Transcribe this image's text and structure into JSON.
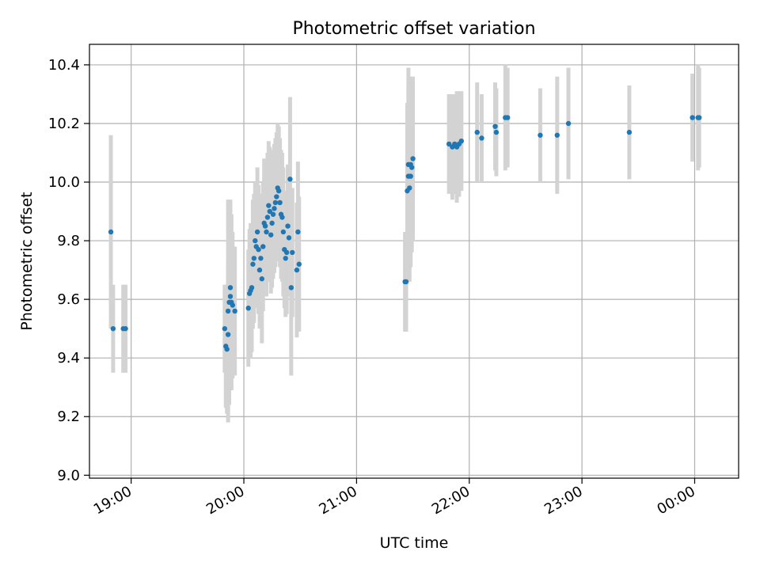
{
  "chart_data": {
    "type": "scatter",
    "title": "Photometric offset variation",
    "xlabel": "UTC time",
    "ylabel": "Photometric offset",
    "x_axis": {
      "unit": "hours since 18:00 UTC",
      "range": [
        0.63,
        6.39
      ],
      "ticks": [
        {
          "value": 1,
          "label": "19:00"
        },
        {
          "value": 2,
          "label": "20:00"
        },
        {
          "value": 3,
          "label": "21:00"
        },
        {
          "value": 4,
          "label": "22:00"
        },
        {
          "value": 5,
          "label": "23:00"
        },
        {
          "value": 6,
          "label": "00:00"
        }
      ]
    },
    "y_axis": {
      "range": [
        8.99,
        10.47
      ],
      "ticks": [
        {
          "value": 9.0,
          "label": "9.0"
        },
        {
          "value": 9.2,
          "label": "9.2"
        },
        {
          "value": 9.4,
          "label": "9.4"
        },
        {
          "value": 9.6,
          "label": "9.6"
        },
        {
          "value": 9.8,
          "label": "9.8"
        },
        {
          "value": 10.0,
          "label": "10.0"
        },
        {
          "value": 10.2,
          "label": "10.2"
        },
        {
          "value": 10.4,
          "label": "10.4"
        }
      ]
    },
    "grid": true,
    "legend": "none",
    "colors": {
      "points": "#1f77b4",
      "errorbars": "#d3d3d3",
      "grid": "#b0b0b0"
    },
    "series": [
      {
        "points": [
          [
            0.82,
            9.83,
            0.33
          ],
          [
            0.84,
            9.5,
            0.15
          ],
          [
            0.93,
            9.5,
            0.15
          ],
          [
            0.95,
            9.5,
            0.15
          ],
          [
            1.83,
            9.5,
            0.15
          ],
          [
            1.84,
            9.44,
            0.21
          ],
          [
            1.85,
            9.43,
            0.22
          ],
          [
            1.86,
            9.48,
            0.25
          ],
          [
            1.86,
            9.56,
            0.38
          ],
          [
            1.87,
            9.59,
            0.35
          ],
          [
            1.88,
            9.64,
            0.3
          ],
          [
            1.88,
            9.61,
            0.32
          ],
          [
            1.89,
            9.59,
            0.3
          ],
          [
            1.9,
            9.58,
            0.25
          ],
          [
            1.92,
            9.56,
            0.22
          ],
          [
            2.04,
            9.57,
            0.2
          ],
          [
            2.05,
            9.62,
            0.22
          ],
          [
            2.06,
            9.63,
            0.23
          ],
          [
            2.07,
            9.64,
            0.22
          ],
          [
            2.08,
            9.72,
            0.22
          ],
          [
            2.09,
            9.74,
            0.22
          ],
          [
            2.1,
            9.8,
            0.2
          ],
          [
            2.11,
            9.78,
            0.21
          ],
          [
            2.12,
            9.83,
            0.22
          ],
          [
            2.13,
            9.77,
            0.22
          ],
          [
            2.14,
            9.7,
            0.2
          ],
          [
            2.15,
            9.74,
            0.22
          ],
          [
            2.16,
            9.67,
            0.22
          ],
          [
            2.17,
            9.78,
            0.22
          ],
          [
            2.18,
            9.86,
            0.22
          ],
          [
            2.19,
            9.85,
            0.23
          ],
          [
            2.2,
            9.83,
            0.22
          ],
          [
            2.21,
            9.88,
            0.22
          ],
          [
            2.22,
            9.92,
            0.22
          ],
          [
            2.23,
            9.9,
            0.22
          ],
          [
            2.24,
            9.82,
            0.2
          ],
          [
            2.25,
            9.86,
            0.22
          ],
          [
            2.26,
            9.89,
            0.22
          ],
          [
            2.27,
            9.91,
            0.22
          ],
          [
            2.28,
            9.93,
            0.22
          ],
          [
            2.29,
            9.95,
            0.22
          ],
          [
            2.3,
            9.98,
            0.22
          ],
          [
            2.31,
            9.97,
            0.22
          ],
          [
            2.32,
            9.93,
            0.22
          ],
          [
            2.33,
            9.89,
            0.22
          ],
          [
            2.34,
            9.88,
            0.22
          ],
          [
            2.35,
            9.83,
            0.22
          ],
          [
            2.36,
            9.77,
            0.2
          ],
          [
            2.37,
            9.74,
            0.2
          ],
          [
            2.38,
            9.76,
            0.21
          ],
          [
            2.39,
            9.85,
            0.21
          ],
          [
            2.4,
            9.81,
            0.2
          ],
          [
            2.41,
            10.01,
            0.28
          ],
          [
            2.42,
            9.64,
            0.3
          ],
          [
            2.43,
            9.76,
            0.22
          ],
          [
            2.47,
            9.7,
            0.23
          ],
          [
            2.48,
            9.83,
            0.24
          ],
          [
            2.49,
            9.72,
            0.23
          ],
          [
            3.43,
            9.66,
            0.17
          ],
          [
            3.44,
            9.66,
            0.17
          ],
          [
            3.45,
            9.97,
            0.3
          ],
          [
            3.46,
            10.06,
            0.33
          ],
          [
            3.46,
            10.02,
            0.31
          ],
          [
            3.47,
            9.98,
            0.32
          ],
          [
            3.48,
            10.06,
            0.3
          ],
          [
            3.48,
            10.02,
            0.31
          ],
          [
            3.49,
            10.05,
            0.29
          ],
          [
            3.5,
            10.08,
            0.28
          ],
          [
            3.82,
            10.13,
            0.17
          ],
          [
            3.85,
            10.12,
            0.18
          ],
          [
            3.87,
            10.13,
            0.17
          ],
          [
            3.89,
            10.12,
            0.19
          ],
          [
            3.91,
            10.13,
            0.18
          ],
          [
            3.93,
            10.14,
            0.17
          ],
          [
            4.07,
            10.17,
            0.17
          ],
          [
            4.11,
            10.15,
            0.15
          ],
          [
            4.23,
            10.19,
            0.15
          ],
          [
            4.24,
            10.17,
            0.15
          ],
          [
            4.32,
            10.22,
            0.18
          ],
          [
            4.34,
            10.22,
            0.17
          ],
          [
            4.63,
            10.16,
            0.16
          ],
          [
            4.78,
            10.16,
            0.2
          ],
          [
            4.88,
            10.2,
            0.19
          ],
          [
            5.42,
            10.17,
            0.16
          ],
          [
            5.98,
            10.22,
            0.15
          ],
          [
            6.03,
            10.22,
            0.18
          ],
          [
            6.04,
            10.22,
            0.17
          ]
        ]
      }
    ]
  }
}
